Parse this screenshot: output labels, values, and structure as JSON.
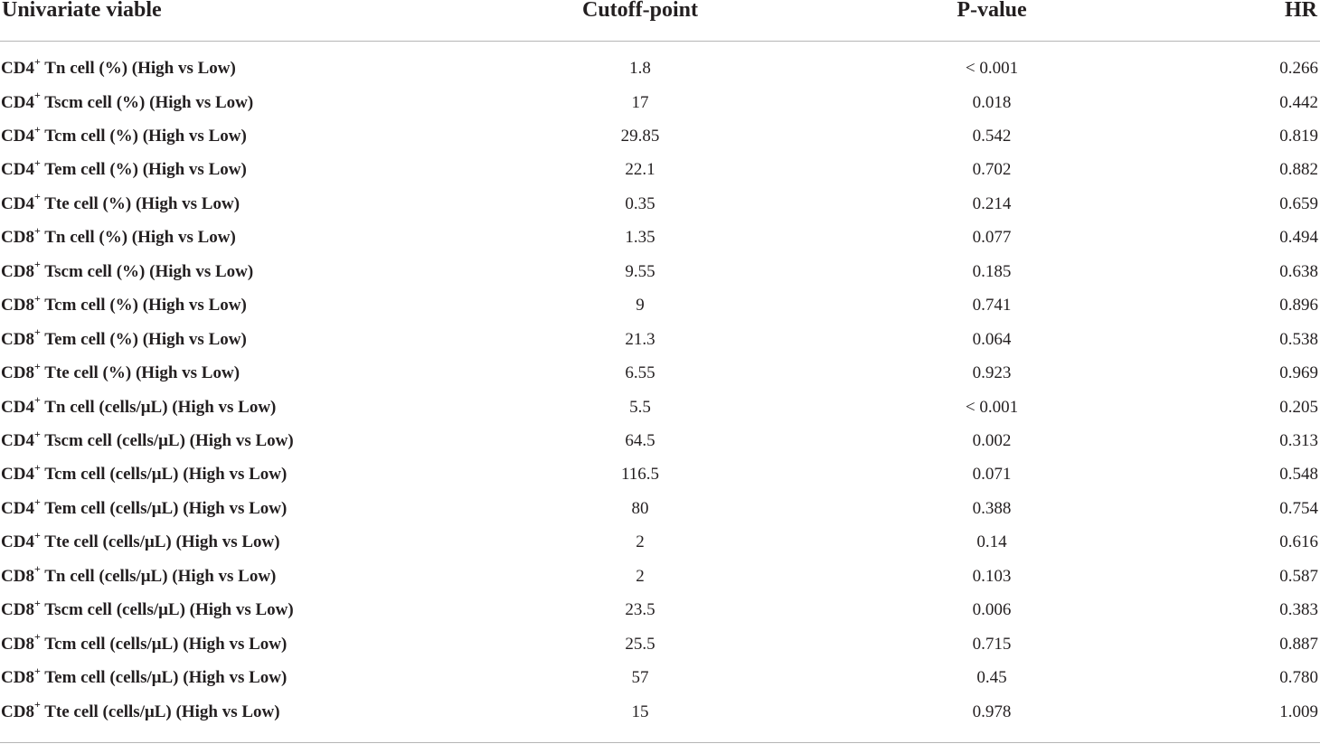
{
  "table": {
    "headers": {
      "variable": "Univariate viable",
      "cutoff": "Cutoff-point",
      "pvalue": "P-value",
      "hr": "HR"
    },
    "rows": [
      {
        "prefix": "CD4",
        "sup": "+",
        "rest": " Tn cell (%) (High vs Low)",
        "cutoff": "1.8",
        "pvalue": "< 0.001",
        "hr": "0.266"
      },
      {
        "prefix": "CD4",
        "sup": "+",
        "rest": " Tscm cell (%) (High vs Low)",
        "cutoff": "17",
        "pvalue": "0.018",
        "hr": "0.442"
      },
      {
        "prefix": "CD4",
        "sup": "+",
        "rest": " Tcm cell (%) (High vs Low)",
        "cutoff": "29.85",
        "pvalue": "0.542",
        "hr": "0.819"
      },
      {
        "prefix": "CD4",
        "sup": "+",
        "rest": " Tem cell (%) (High vs Low)",
        "cutoff": "22.1",
        "pvalue": "0.702",
        "hr": "0.882"
      },
      {
        "prefix": "CD4",
        "sup": "+",
        "rest": " Tte cell (%) (High vs Low)",
        "cutoff": "0.35",
        "pvalue": "0.214",
        "hr": "0.659"
      },
      {
        "prefix": "CD8",
        "sup": "+",
        "rest": " Tn cell (%) (High vs Low)",
        "cutoff": "1.35",
        "pvalue": "0.077",
        "hr": "0.494"
      },
      {
        "prefix": "CD8",
        "sup": "+",
        "rest": " Tscm cell (%) (High vs Low)",
        "cutoff": "9.55",
        "pvalue": "0.185",
        "hr": "0.638"
      },
      {
        "prefix": "CD8",
        "sup": "+",
        "rest": " Tcm cell (%) (High vs Low)",
        "cutoff": "9",
        "pvalue": "0.741",
        "hr": "0.896"
      },
      {
        "prefix": "CD8",
        "sup": "+",
        "rest": " Tem cell (%) (High vs Low)",
        "cutoff": "21.3",
        "pvalue": "0.064",
        "hr": "0.538"
      },
      {
        "prefix": "CD8",
        "sup": "+",
        "rest": " Tte cell (%) (High vs Low)",
        "cutoff": "6.55",
        "pvalue": "0.923",
        "hr": "0.969"
      },
      {
        "prefix": "CD4",
        "sup": "+",
        "rest": " Tn cell (cells/μL) (High vs Low)",
        "cutoff": "5.5",
        "pvalue": "< 0.001",
        "hr": "0.205"
      },
      {
        "prefix": "CD4",
        "sup": "+",
        "rest": " Tscm cell (cells/μL) (High vs Low)",
        "cutoff": "64.5",
        "pvalue": "0.002",
        "hr": "0.313"
      },
      {
        "prefix": "CD4",
        "sup": "+",
        "rest": " Tcm cell (cells/μL) (High vs Low)",
        "cutoff": "116.5",
        "pvalue": "0.071",
        "hr": "0.548"
      },
      {
        "prefix": "CD4",
        "sup": "+",
        "rest": " Tem cell (cells/μL) (High vs Low)",
        "cutoff": "80",
        "pvalue": "0.388",
        "hr": "0.754"
      },
      {
        "prefix": "CD4",
        "sup": "+",
        "rest": " Tte cell (cells/μL) (High vs Low)",
        "cutoff": "2",
        "pvalue": "0.14",
        "hr": "0.616"
      },
      {
        "prefix": "CD8",
        "sup": "+",
        "rest": " Tn cell (cells/μL) (High vs Low)",
        "cutoff": "2",
        "pvalue": "0.103",
        "hr": "0.587"
      },
      {
        "prefix": "CD8",
        "sup": "+",
        "rest": " Tscm cell (cells/μL) (High vs Low)",
        "cutoff": "23.5",
        "pvalue": "0.006",
        "hr": "0.383"
      },
      {
        "prefix": "CD8",
        "sup": "+",
        "rest": " Tcm cell (cells/μL) (High vs Low)",
        "cutoff": "25.5",
        "pvalue": "0.715",
        "hr": "0.887"
      },
      {
        "prefix": "CD8",
        "sup": "+",
        "rest": " Tem cell (cells/μL) (High vs Low)",
        "cutoff": "57",
        "pvalue": "0.45",
        "hr": "0.780"
      },
      {
        "prefix": "CD8",
        "sup": "+",
        "rest": " Tte cell (cells/μL) (High vs Low)",
        "cutoff": "15",
        "pvalue": "0.978",
        "hr": "1.009"
      }
    ]
  },
  "colors": {
    "text": "#231f20",
    "rule": "#b5b5b5",
    "background": "#ffffff"
  }
}
